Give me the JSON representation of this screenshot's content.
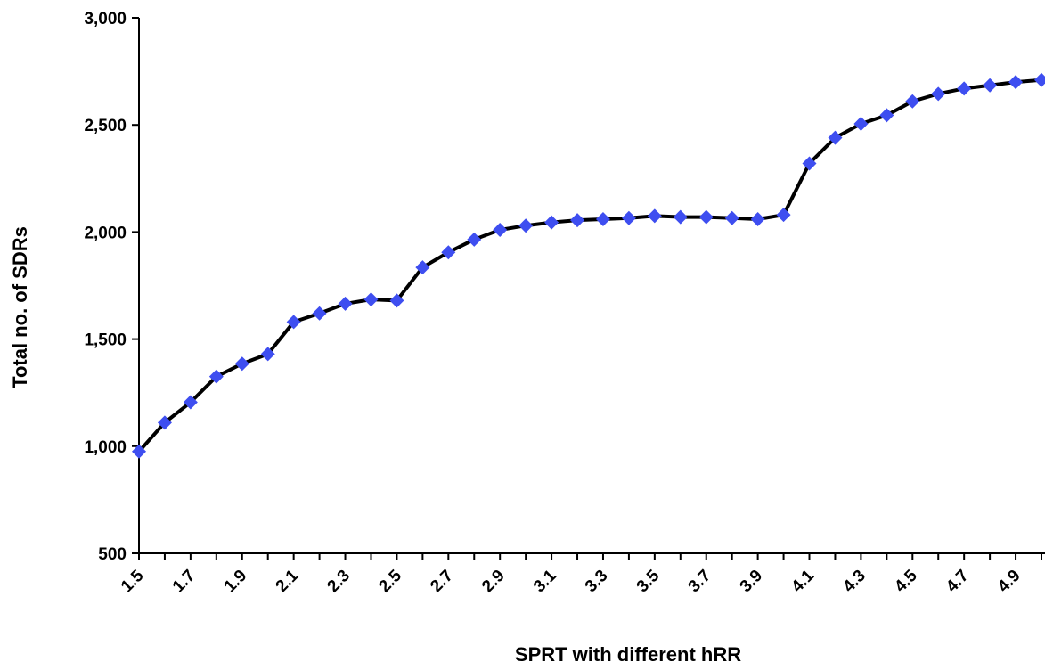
{
  "chart_data": {
    "type": "line",
    "title": "",
    "xlabel": "SPRT with different hRR",
    "ylabel": "Total no. of SDRs",
    "ylim": [
      500,
      3000
    ],
    "yticks": [
      "500",
      "1,000",
      "1,500",
      "2,000",
      "2,500",
      "3,000"
    ],
    "ytick_values": [
      500,
      1000,
      1500,
      2000,
      2500,
      3000
    ],
    "x": [
      1.5,
      1.6,
      1.7,
      1.8,
      1.9,
      2.0,
      2.1,
      2.2,
      2.3,
      2.4,
      2.5,
      2.6,
      2.7,
      2.8,
      2.9,
      3.0,
      3.1,
      3.2,
      3.3,
      3.4,
      3.5,
      3.6,
      3.7,
      3.8,
      3.9,
      4.0,
      4.1,
      4.2,
      4.3,
      4.4,
      4.5,
      4.6,
      4.7,
      4.8,
      4.9,
      5.0
    ],
    "xtick_labels": [
      "1.5",
      "1.7",
      "1.9",
      "2.1",
      "2.3",
      "2.5",
      "2.7",
      "2.9",
      "3.1",
      "3.3",
      "3.5",
      "3.7",
      "3.9",
      "4.1",
      "4.3",
      "4.5",
      "4.7",
      "4.9"
    ],
    "xtick_values": [
      1.5,
      1.7,
      1.9,
      2.1,
      2.3,
      2.5,
      2.7,
      2.9,
      3.1,
      3.3,
      3.5,
      3.7,
      3.9,
      4.1,
      4.3,
      4.5,
      4.7,
      4.9
    ],
    "series": [
      {
        "values": [
          975,
          1110,
          1205,
          1325,
          1385,
          1430,
          1580,
          1620,
          1665,
          1685,
          1680,
          1835,
          1905,
          1965,
          2010,
          2030,
          2045,
          2055,
          2060,
          2065,
          2075,
          2070,
          2070,
          2065,
          2060,
          2080,
          2320,
          2440,
          2505,
          2545,
          2610,
          2645,
          2670,
          2685,
          2700,
          2710
        ],
        "line_color": "#000000",
        "marker_color": "#3e4ef0",
        "marker": "diamond"
      }
    ],
    "grid": false,
    "legend": "none"
  }
}
